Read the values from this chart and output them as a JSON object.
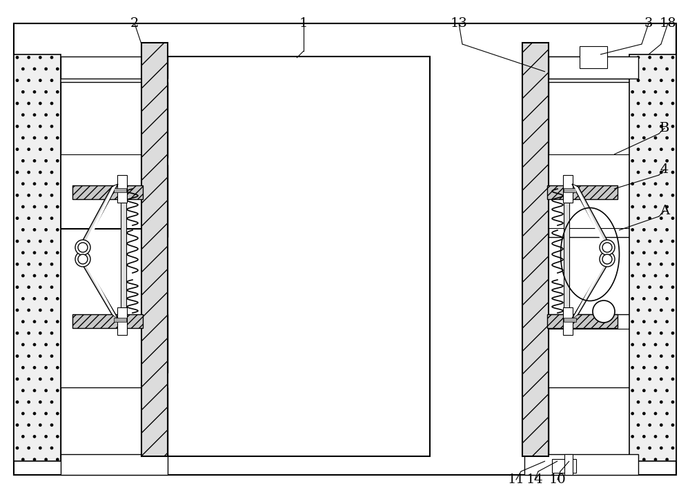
{
  "bg_color": "#ffffff",
  "fig_width": 10.0,
  "fig_height": 7.24,
  "dpi": 100
}
